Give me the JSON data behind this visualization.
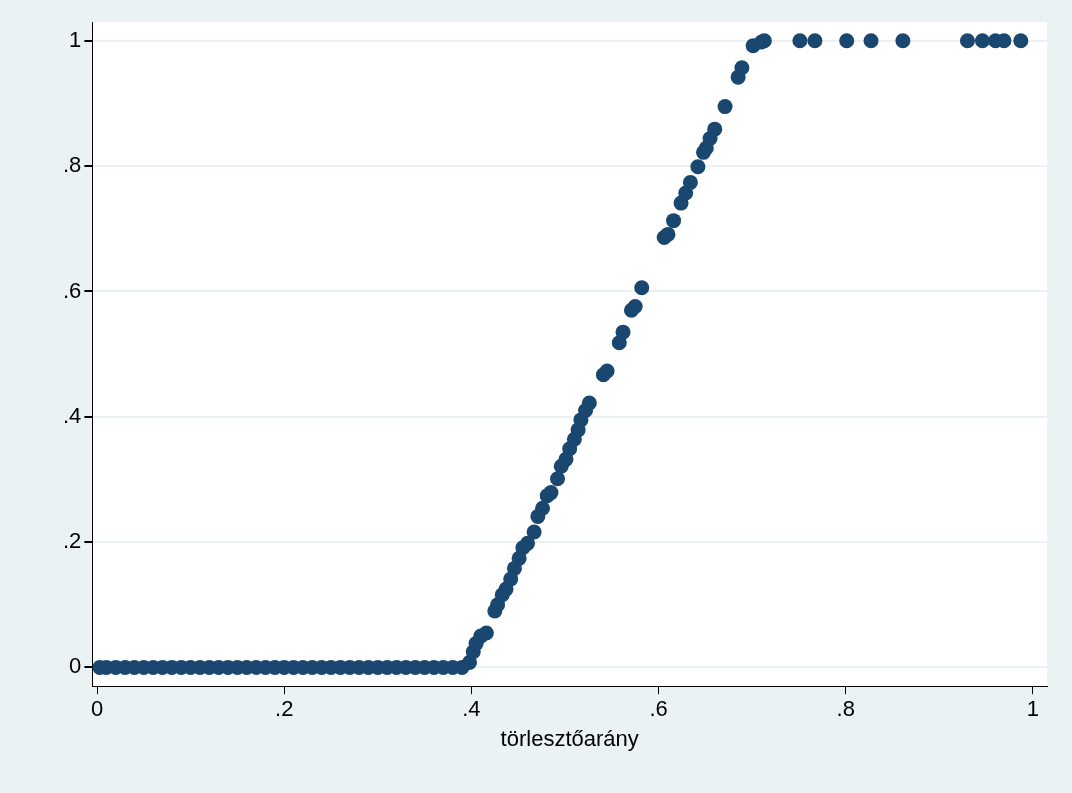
{
  "chart_data": {
    "type": "scatter",
    "xlabel": "törlesztőarány",
    "marker": "circle",
    "grid": "y",
    "xlim": [
      -0.005,
      1.015
    ],
    "ylim": [
      -0.03,
      1.03
    ],
    "xticks": [
      0,
      {
        "value": 0.2,
        "label": ".2"
      },
      {
        "value": 0.4,
        "label": ".4"
      },
      {
        "value": 0.6,
        "label": ".6"
      },
      {
        "value": 0.8,
        "label": ".8"
      },
      1
    ],
    "yticks": [
      0,
      {
        "value": 0.2,
        "label": ".2"
      },
      {
        "value": 0.4,
        "label": ".4"
      },
      {
        "value": 0.6,
        "label": ".6"
      },
      {
        "value": 0.8,
        "label": ".8"
      },
      1
    ],
    "series": [
      {
        "color": "#1a476f",
        "x": [
          0.003,
          0.01,
          0.02,
          0.03,
          0.04,
          0.05,
          0.06,
          0.07,
          0.08,
          0.09,
          0.1,
          0.11,
          0.12,
          0.13,
          0.14,
          0.15,
          0.16,
          0.17,
          0.18,
          0.19,
          0.2,
          0.21,
          0.22,
          0.23,
          0.24,
          0.25,
          0.26,
          0.27,
          0.28,
          0.29,
          0.3,
          0.31,
          0.32,
          0.33,
          0.34,
          0.35,
          0.36,
          0.37,
          0.38,
          0.39,
          0.398,
          0.402,
          0.405,
          0.41,
          0.416,
          0.425,
          0.428,
          0.433,
          0.437,
          0.442,
          0.446,
          0.451,
          0.455,
          0.46,
          0.467,
          0.471,
          0.476,
          0.481,
          0.485,
          0.492,
          0.496,
          0.501,
          0.505,
          0.51,
          0.514,
          0.517,
          0.522,
          0.526,
          0.541,
          0.545,
          0.558,
          0.562,
          0.571,
          0.575,
          0.582,
          0.606,
          0.61,
          0.616,
          0.624,
          0.629,
          0.634,
          0.642,
          0.648,
          0.651,
          0.655,
          0.66,
          0.671,
          0.685,
          0.689,
          0.701,
          0.71,
          0.713,
          0.751,
          0.767,
          0.801,
          0.827,
          0.861,
          0.93,
          0.946,
          0.96,
          0.969,
          0.987
        ],
        "values": [
          0,
          0,
          0,
          0,
          0,
          0,
          0,
          0,
          0,
          0,
          0,
          0,
          0,
          0,
          0,
          0,
          0,
          0,
          0,
          0,
          0,
          0,
          0,
          0,
          0,
          0,
          0,
          0,
          0,
          0,
          0,
          0,
          0,
          0,
          0,
          0,
          0,
          0,
          0,
          0,
          0.008,
          0.025,
          0.038,
          0.05,
          0.055,
          0.09,
          0.1,
          0.116,
          0.125,
          0.141,
          0.158,
          0.174,
          0.191,
          0.198,
          0.216,
          0.241,
          0.254,
          0.274,
          0.279,
          0.301,
          0.321,
          0.332,
          0.349,
          0.364,
          0.379,
          0.395,
          0.41,
          0.422,
          0.467,
          0.473,
          0.518,
          0.535,
          0.57,
          0.576,
          0.606,
          0.686,
          0.691,
          0.713,
          0.741,
          0.757,
          0.774,
          0.799,
          0.822,
          0.829,
          0.844,
          0.859,
          0.895,
          0.942,
          0.957,
          0.992,
          0.998,
          1,
          1,
          1,
          1,
          1,
          1,
          1,
          1,
          1,
          1,
          1
        ]
      }
    ]
  }
}
